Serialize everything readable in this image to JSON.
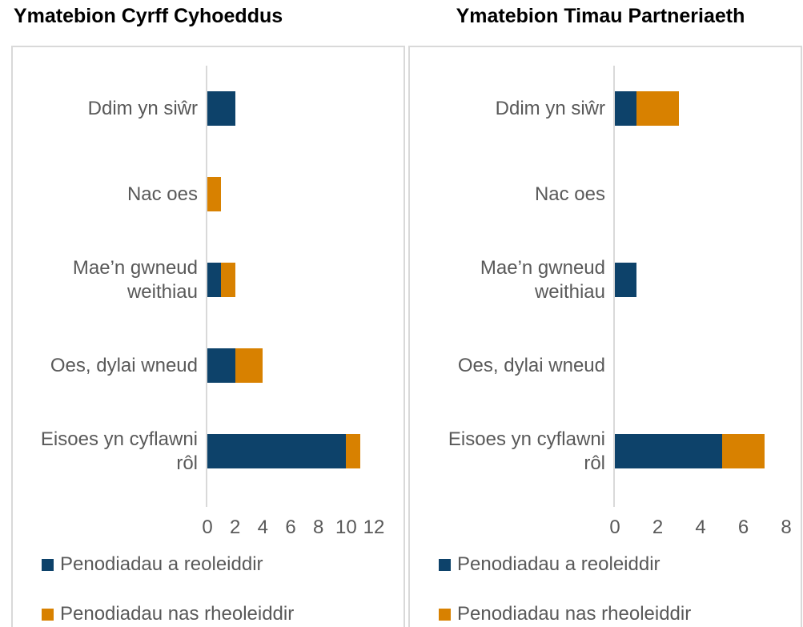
{
  "chart_data": [
    {
      "type": "bar",
      "orientation": "horizontal",
      "stacked": true,
      "title": "Ymatebion Cyrff Cyhoeddus",
      "categories": [
        "Ddim yn siŵr",
        "Nac oes",
        "Mae’n gwneud weithiau",
        "Oes, dylai wneud",
        "Eisoes yn cyflawni rôl"
      ],
      "series": [
        {
          "name": "Penodiadau a reoleiddir",
          "color": "#0d426a",
          "values": [
            2,
            0,
            1,
            2,
            10
          ]
        },
        {
          "name": "Penodiadau nas rheoleiddir",
          "color": "#d88100",
          "values": [
            0,
            1,
            1,
            2,
            1
          ]
        }
      ],
      "xlim": [
        0,
        12
      ],
      "xticks": [
        0,
        2,
        4,
        6,
        8,
        10,
        12
      ],
      "grid": false,
      "legend_position": "bottom-left"
    },
    {
      "type": "bar",
      "orientation": "horizontal",
      "stacked": true,
      "title": "Ymatebion Timau Partneriaeth",
      "categories": [
        "Ddim yn siŵr",
        "Nac oes",
        "Mae’n gwneud weithiau",
        "Oes, dylai wneud",
        "Eisoes yn cyflawni rôl"
      ],
      "series": [
        {
          "name": "Penodiadau a reoleiddir",
          "color": "#0d426a",
          "values": [
            1,
            0,
            1,
            0,
            5
          ]
        },
        {
          "name": "Penodiadau nas rheoleiddir",
          "color": "#d88100",
          "values": [
            2,
            0,
            0,
            0,
            2
          ]
        }
      ],
      "xlim": [
        0,
        8
      ],
      "xticks": [
        0,
        2,
        4,
        6,
        8
      ],
      "grid": false,
      "legend_position": "bottom-left"
    }
  ],
  "colors": {
    "axis_line": "#d9d9d9",
    "panel_border": "#d9d9d9",
    "text_gray": "#595959",
    "title_black": "#000000",
    "series_regulated_blue": "#0d426a",
    "series_unregulated_orange": "#d88100"
  }
}
